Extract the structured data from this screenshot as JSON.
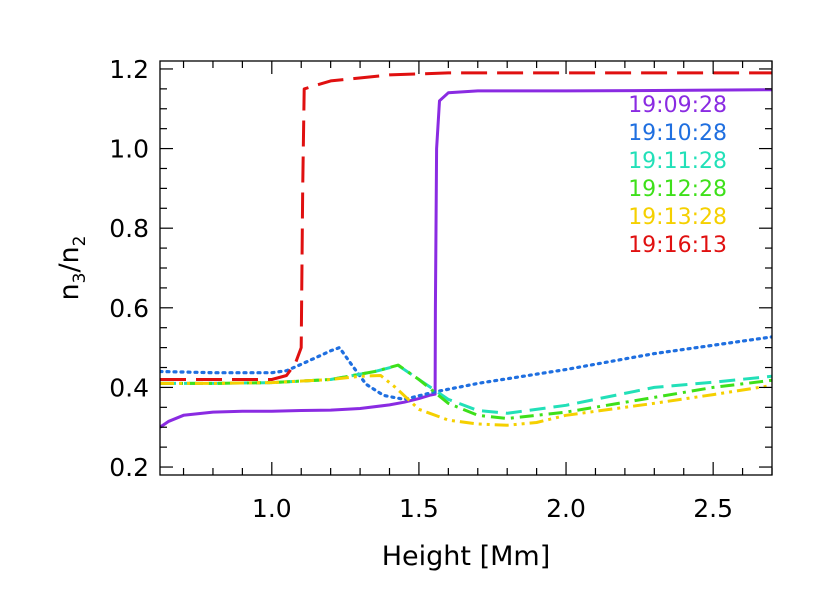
{
  "chart_data": {
    "type": "line",
    "title": "",
    "xlabel": "Height [Mm]",
    "ylabel": "n3/n2",
    "ylabel_main": "n",
    "ylabel_sub1": "3",
    "ylabel_slash": "/",
    "ylabel_sub2": "2",
    "xlim": [
      0.62,
      2.7
    ],
    "ylim": [
      0.18,
      1.22
    ],
    "x_ticks": [
      1.0,
      1.5,
      2.0,
      2.5
    ],
    "x_tick_labels": [
      "1.0",
      "1.5",
      "2.0",
      "2.5"
    ],
    "y_ticks": [
      0.2,
      0.4,
      0.6,
      0.8,
      1.0,
      1.2
    ],
    "y_tick_labels": [
      "0.2",
      "0.4",
      "0.6",
      "0.8",
      "1.0",
      "1.2"
    ],
    "grid": false,
    "legend_position": "top-right",
    "series": [
      {
        "name": "19:09:28",
        "color": "#8a2be2",
        "style": "solid",
        "x": [
          0.62,
          0.65,
          0.7,
          0.8,
          0.9,
          1.0,
          1.1,
          1.2,
          1.3,
          1.4,
          1.45,
          1.5,
          1.54,
          1.555,
          1.556,
          1.56,
          1.57,
          1.6,
          1.7,
          2.0,
          2.3,
          2.7
        ],
        "y": [
          0.3,
          0.315,
          0.33,
          0.338,
          0.34,
          0.34,
          0.342,
          0.343,
          0.347,
          0.356,
          0.363,
          0.372,
          0.381,
          0.383,
          0.6,
          1.0,
          1.12,
          1.14,
          1.145,
          1.145,
          1.146,
          1.148
        ]
      },
      {
        "name": "19:10:28",
        "color": "#1f6fe0",
        "style": "dotted",
        "x": [
          0.62,
          0.8,
          1.0,
          1.05,
          1.1,
          1.15,
          1.2,
          1.23,
          1.27,
          1.32,
          1.38,
          1.45,
          1.55,
          1.7,
          2.0,
          2.3,
          2.7
        ],
        "y": [
          0.44,
          0.437,
          0.437,
          0.442,
          0.458,
          0.475,
          0.492,
          0.5,
          0.458,
          0.408,
          0.38,
          0.37,
          0.388,
          0.41,
          0.445,
          0.485,
          0.527
        ]
      },
      {
        "name": "19:11:28",
        "color": "#22e0b8",
        "style": "dashed",
        "x": [
          0.62,
          0.8,
          1.0,
          1.2,
          1.35,
          1.43,
          1.5,
          1.6,
          1.7,
          1.8,
          2.0,
          2.3,
          2.5,
          2.7
        ],
        "y": [
          0.41,
          0.41,
          0.412,
          0.42,
          0.44,
          0.455,
          0.42,
          0.37,
          0.342,
          0.335,
          0.355,
          0.4,
          0.413,
          0.428
        ]
      },
      {
        "name": "19:12:28",
        "color": "#3ee01a",
        "style": "dashdot",
        "x": [
          0.62,
          0.8,
          1.0,
          1.2,
          1.35,
          1.43,
          1.5,
          1.6,
          1.7,
          1.8,
          2.0,
          2.3,
          2.5,
          2.7
        ],
        "y": [
          0.41,
          0.41,
          0.412,
          0.42,
          0.44,
          0.456,
          0.42,
          0.36,
          0.33,
          0.322,
          0.338,
          0.375,
          0.4,
          0.418
        ]
      },
      {
        "name": "19:13:28",
        "color": "#f5d000",
        "style": "dashdotdot",
        "x": [
          0.62,
          0.8,
          1.0,
          1.2,
          1.3,
          1.37,
          1.42,
          1.5,
          1.6,
          1.7,
          1.8,
          1.9,
          2.0,
          2.3,
          2.5,
          2.7
        ],
        "y": [
          0.41,
          0.41,
          0.412,
          0.42,
          0.428,
          0.43,
          0.4,
          0.345,
          0.318,
          0.308,
          0.305,
          0.312,
          0.33,
          0.36,
          0.382,
          0.405
        ]
      },
      {
        "name": "19:16:13",
        "color": "#e01010",
        "style": "longdash",
        "x": [
          0.62,
          0.8,
          1.0,
          1.05,
          1.08,
          1.1,
          1.105,
          1.11,
          1.2,
          1.4,
          1.6,
          2.0,
          2.4,
          2.7
        ],
        "y": [
          0.42,
          0.42,
          0.42,
          0.43,
          0.46,
          0.5,
          0.9,
          1.15,
          1.17,
          1.185,
          1.19,
          1.19,
          1.19,
          1.19
        ]
      }
    ]
  }
}
